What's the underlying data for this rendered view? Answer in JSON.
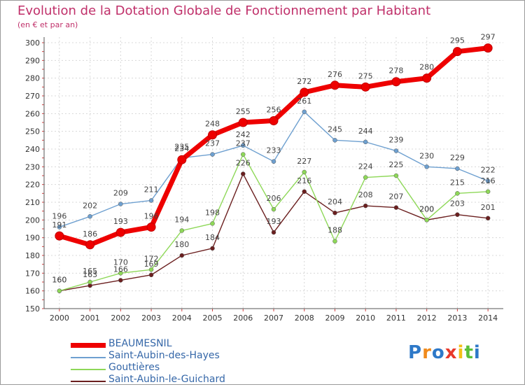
{
  "chart_data": {
    "type": "line",
    "title": "Evolution de la Dotation Globale de Fonctionnement par Habitant",
    "subtitle": "(en € et par an)",
    "xlabel": "",
    "ylabel": "",
    "x": [
      "2000",
      "2001",
      "2002",
      "2003",
      "2004",
      "2005",
      "2006",
      "2007",
      "2008",
      "2009",
      "2010",
      "2011",
      "2012",
      "2013",
      "2014"
    ],
    "ylim": [
      150,
      300
    ],
    "yticks": [
      150,
      160,
      170,
      180,
      190,
      200,
      210,
      220,
      230,
      240,
      250,
      260,
      270,
      280,
      290,
      300
    ],
    "grid": true,
    "legend_position": "bottom-left",
    "series": [
      {
        "name": "BEAUMESNIL",
        "color": "#ee0000",
        "values": [
          191,
          186,
          193,
          196,
          234,
          248,
          255,
          256,
          272,
          276,
          275,
          278,
          280,
          295,
          297
        ]
      },
      {
        "name": "Saint-Aubin-des-Hayes",
        "color": "#6ea0d0",
        "values": [
          196,
          202,
          209,
          211,
          235,
          237,
          242,
          233,
          261,
          245,
          244,
          239,
          230,
          229,
          222
        ]
      },
      {
        "name": "Gouttières",
        "color": "#8ed858",
        "values": [
          160,
          165,
          170,
          172,
          194,
          198,
          237,
          206,
          227,
          188,
          224,
          225,
          200,
          215,
          216
        ]
      },
      {
        "name": "Saint-Aubin-le-Guichard",
        "color": "#6b1f1f",
        "values": [
          160,
          163,
          166,
          169,
          180,
          184,
          226,
          193,
          216,
          204,
          208,
          207,
          200,
          203,
          201
        ]
      }
    ]
  },
  "logo": {
    "text": "Proxiti",
    "colors": [
      "#2e79c8",
      "#f08a1c",
      "#2e79c8",
      "#e8392b",
      "#f3c018",
      "#5bbf3a",
      "#2e79c8"
    ]
  }
}
